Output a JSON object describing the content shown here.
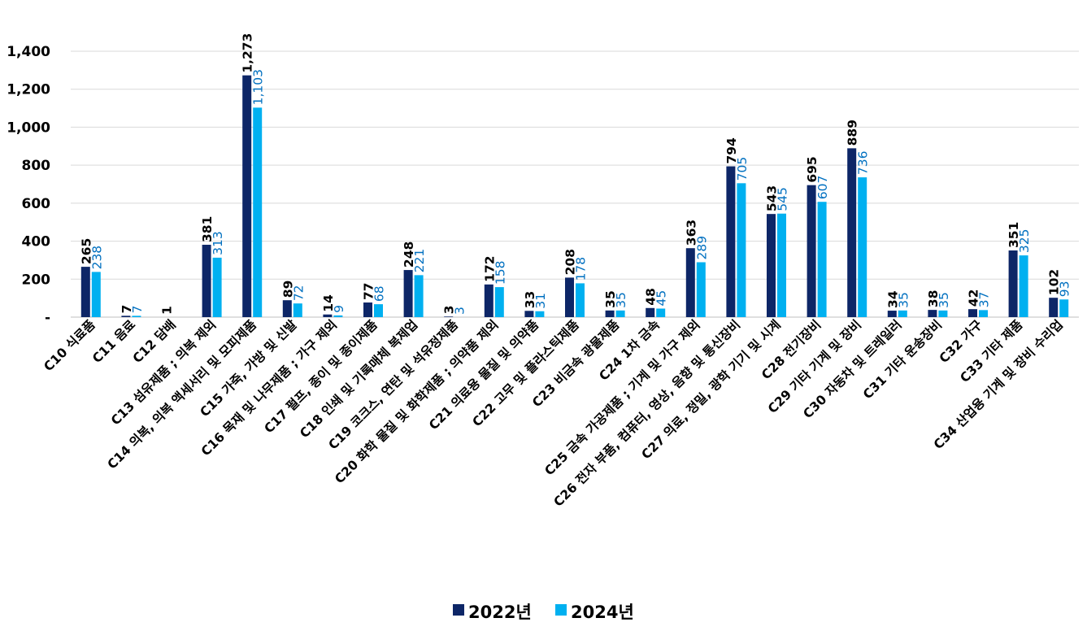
{
  "chart_data": {
    "type": "bar",
    "title": "",
    "xlabel": "",
    "ylabel": "",
    "ylim": [
      0,
      1400
    ],
    "yticks": [
      0,
      200,
      400,
      600,
      800,
      1000,
      1200,
      1400
    ],
    "ytick_labels": [
      "-",
      "200",
      "400",
      "600",
      "800",
      "1,000",
      "1,200",
      "1,400"
    ],
    "grid": true,
    "legend_position": "bottom",
    "categories": [
      "C10 식료품",
      "C11 음료",
      "C12 담배",
      "C13 섬유제품 ; 의복 제외",
      "C14 의복, 의복 액세서리 및 모피제품",
      "C15 가죽, 가방 및 신발",
      "C16 목재 및 나무제품 ; 가구 제외",
      "C17 펄프, 종이 및 종이제품",
      "C18 인쇄 및 기록매체 복제업",
      "C19 코크스, 연탄 및 석유정제품",
      "C20 화학 물질 및 화학제품 ; 의약품 제외",
      "C21 의료용 물질 및 의약품",
      "C22 고무 및 플라스틱제품",
      "C23 비금속 광물제품",
      "C24 1차 금속",
      "C25 금속 가공제품 ; 기계 및 가구 제외",
      "C26 전자 부품, 컴퓨터, 영상, 음향 및 통신장비",
      "C27 의료, 정밀, 광학 기기 및 시계",
      "C28 전기장비",
      "C29 기타 기계 및 장비",
      "C30 자동차 및 트레일러",
      "C31 기타 운송장비",
      "C32 가구",
      "C33 기타 제품",
      "C34 산업용 기계 및 장비 수리업"
    ],
    "series": [
      {
        "name": "2022년",
        "color": "#0d2667",
        "values": [
          265,
          7,
          null,
          381,
          1273,
          89,
          14,
          77,
          248,
          3,
          172,
          33,
          208,
          35,
          48,
          363,
          794,
          543,
          695,
          889,
          34,
          38,
          42,
          351,
          102
        ],
        "labels": [
          "265",
          "7",
          "1",
          "381",
          "1,273",
          "89",
          "14",
          "77",
          "248",
          "3",
          "172",
          "33",
          "208",
          "35",
          "48",
          "363",
          "794",
          "543",
          "695",
          "889",
          "34",
          "38",
          "42",
          "351",
          "102"
        ]
      },
      {
        "name": "2024년",
        "color": "#00b0f0",
        "values": [
          238,
          7,
          null,
          313,
          1103,
          72,
          9,
          68,
          221,
          null,
          158,
          31,
          178,
          35,
          45,
          289,
          705,
          545,
          607,
          736,
          35,
          35,
          37,
          325,
          93
        ],
        "labels": [
          "238",
          "7",
          "",
          "313",
          "1,103",
          "72",
          "9",
          "68",
          "221",
          "3",
          "158",
          "31",
          "178",
          "35",
          "45",
          "289",
          "705",
          "545",
          "607",
          "736",
          "35",
          "35",
          "37",
          "325",
          "93"
        ]
      }
    ]
  }
}
